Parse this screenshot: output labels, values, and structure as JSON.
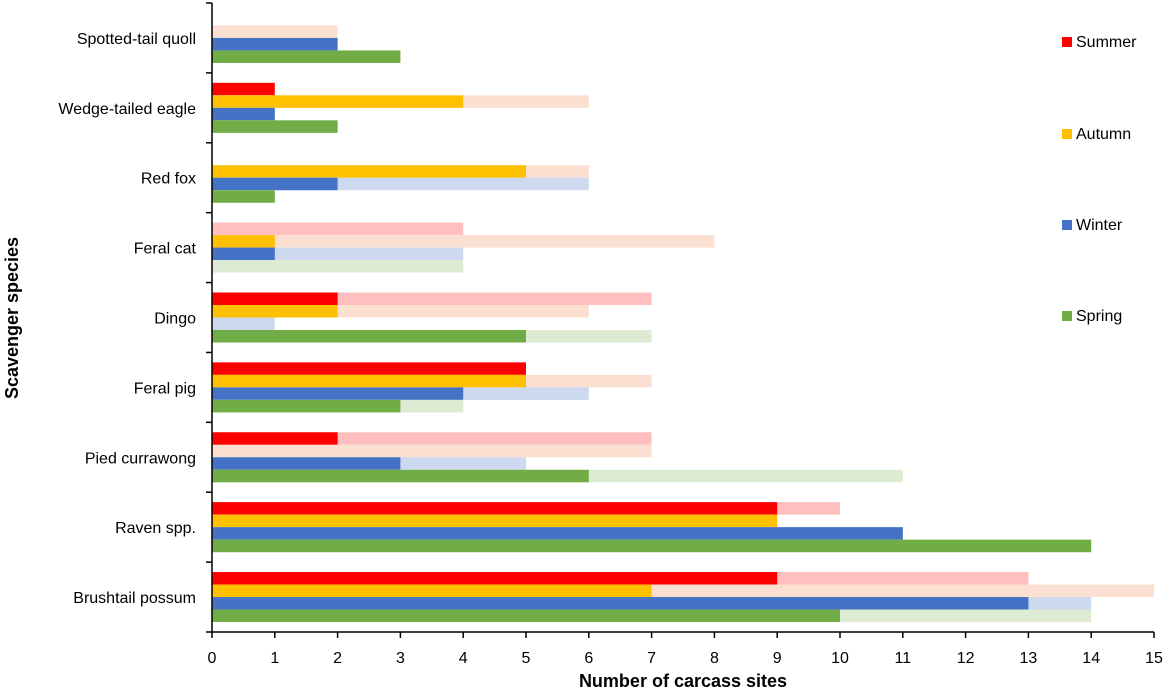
{
  "chart_data": {
    "type": "bar",
    "orientation": "horizontal",
    "xlabel": "Number of carcass sites",
    "ylabel": "Scavenger species",
    "xlim": [
      0,
      15
    ],
    "x_ticks": [
      "0",
      "1",
      "2",
      "3",
      "4",
      "5",
      "6",
      "7",
      "8",
      "9",
      "10",
      "11",
      "12",
      "13",
      "14",
      "15"
    ],
    "grid": false,
    "legend_position": "right",
    "categories": [
      "Spotted-tail quoll",
      "Wedge-tailed eagle",
      "Red fox",
      "Feral cat",
      "Dingo",
      "Feral pig",
      "Pied currawong",
      "Raven spp.",
      "Brushtail possum"
    ],
    "series": [
      {
        "name": "Summer",
        "color": "#ff0000",
        "light_color": "#ffbfbf",
        "values": [
          0,
          1,
          0,
          0,
          2,
          5,
          2,
          9,
          9
        ],
        "light_values": [
          0,
          0,
          0,
          4,
          7,
          5,
          7,
          10,
          13
        ]
      },
      {
        "name": "Autumn",
        "color": "#ffc000",
        "light_color": "#fbdfd0",
        "values": [
          0,
          4,
          5,
          1,
          2,
          5,
          0,
          9,
          7
        ],
        "light_values": [
          2,
          6,
          6,
          8,
          6,
          7,
          7,
          9,
          15
        ]
      },
      {
        "name": "Winter",
        "color": "#4472c4",
        "light_color": "#cdd9ee",
        "values": [
          2,
          1,
          2,
          1,
          0,
          4,
          3,
          11,
          13
        ],
        "light_values": [
          2,
          1,
          6,
          4,
          1,
          6,
          5,
          11,
          14
        ]
      },
      {
        "name": "Spring",
        "color": "#70ad47",
        "light_color": "#dcebd2",
        "values": [
          3,
          2,
          1,
          0,
          5,
          3,
          6,
          14,
          10
        ],
        "light_values": [
          3,
          2,
          1,
          4,
          7,
          4,
          11,
          14,
          14
        ]
      }
    ]
  }
}
